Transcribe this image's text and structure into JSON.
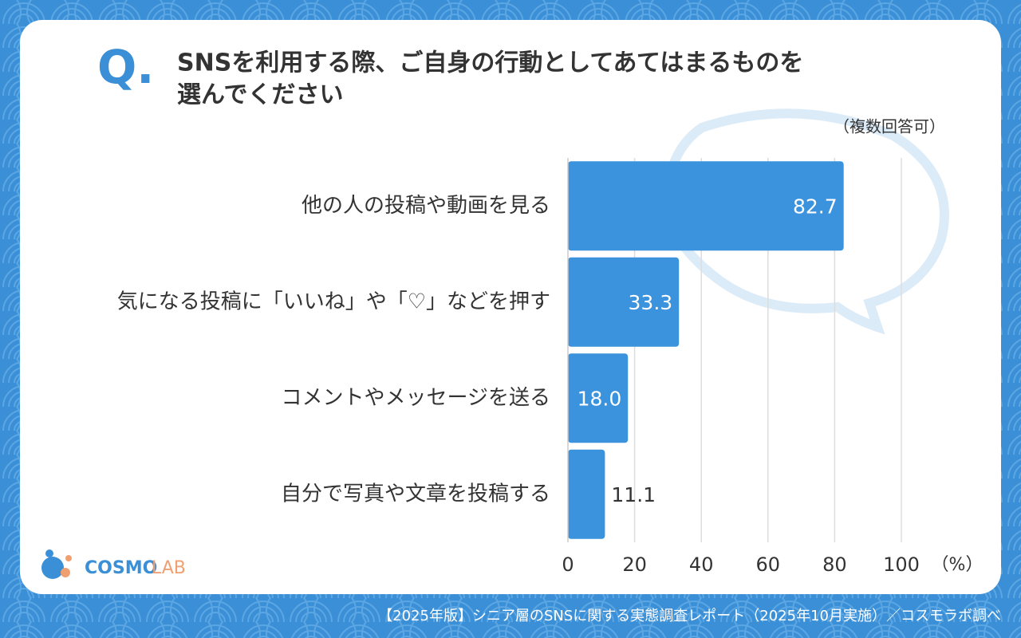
{
  "chart_data": {
    "type": "bar",
    "orientation": "horizontal",
    "question_mark": "Q.",
    "title": [
      "SNSを利用する際、ご自身の行動としてあてはまるものを",
      "選んでください"
    ],
    "note": "（複数回答可）",
    "categories": [
      "他の人の投稿や動画を見る",
      "気になる投稿に「いいね」や「♡」などを押す",
      "コメントやメッセージを送る",
      "自分で写真や文章を投稿する"
    ],
    "values": [
      82.7,
      33.3,
      18.0,
      11.1
    ],
    "value_labels": [
      "82.7",
      "33.3",
      "18.0",
      "11.1"
    ],
    "color": "#3a93dc",
    "xlim": [
      0,
      100
    ],
    "xticks": [
      0,
      20,
      40,
      60,
      80,
      100
    ],
    "x_unit": "（%）",
    "grid": true,
    "logo": [
      "COSMO",
      "LAB"
    ],
    "source": "【2025年版】シニア層のSNSに関する実態調査レポート（2025年10月実施）／コスモラボ調べ"
  }
}
